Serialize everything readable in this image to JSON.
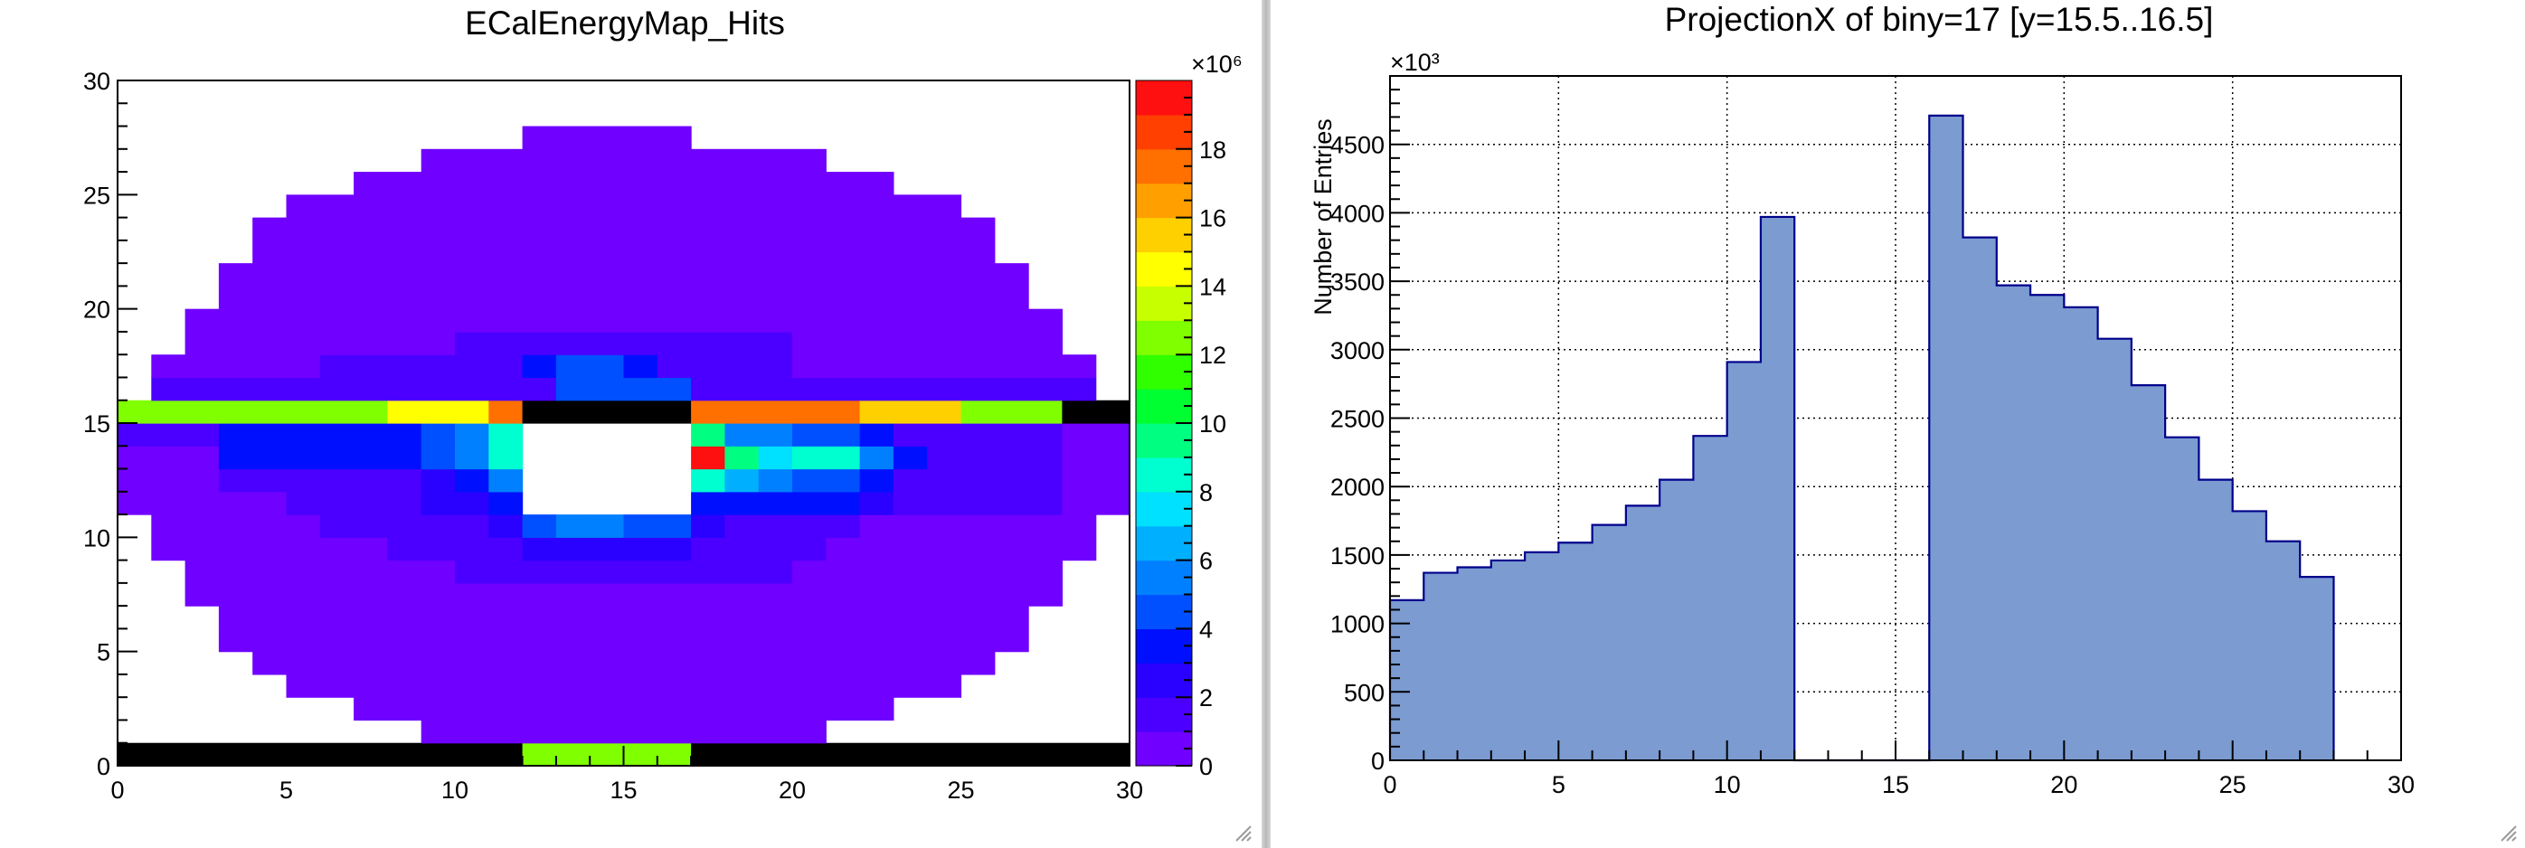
{
  "chart_data": [
    {
      "type": "heatmap",
      "title": "ECalEnergyMap_Hits",
      "xlabel": "",
      "ylabel": "",
      "xlim": [
        0,
        30
      ],
      "ylim": [
        0,
        30
      ],
      "x_ticks": [
        "0",
        "5",
        "10",
        "15",
        "20",
        "25",
        "30"
      ],
      "y_ticks": [
        "0",
        "5",
        "10",
        "15",
        "20",
        "25",
        "30"
      ],
      "colorbar": {
        "range": [
          0,
          20000000
        ],
        "exponent_label": "×10⁶",
        "ticks": [
          "0",
          "2",
          "4",
          "6",
          "8",
          "10",
          "12",
          "14",
          "16",
          "18"
        ],
        "palette": [
          "#7000ff",
          "#4b00ff",
          "#2a00ff",
          "#0010ff",
          "#0050ff",
          "#0080ff",
          "#00b0ff",
          "#00e0ff",
          "#00ffd0",
          "#00ff80",
          "#00ff30",
          "#30ff00",
          "#80ff00",
          "#c8ff00",
          "#ffff00",
          "#ffd000",
          "#ffa000",
          "#ff7000",
          "#ff4000",
          "#ff1010"
        ]
      },
      "cells_note_values_in_millions": true,
      "row_spans": [
        {
          "y": 0,
          "cells": [
            [
              0,
              12,
              0
            ],
            [
              12,
              17,
              12.5
            ],
            [
              17,
              30,
              0
            ]
          ]
        },
        {
          "y": 1,
          "cells": [
            [
              9,
              21,
              0.6
            ]
          ]
        },
        {
          "y": 2,
          "cells": [
            [
              7,
              23,
              0.6
            ]
          ]
        },
        {
          "y": 3,
          "cells": [
            [
              5,
              25,
              0.6
            ]
          ]
        },
        {
          "y": 4,
          "cells": [
            [
              4,
              26,
              0.6
            ]
          ]
        },
        {
          "y": 5,
          "cells": [
            [
              3,
              27,
              0.6
            ]
          ]
        },
        {
          "y": 6,
          "cells": [
            [
              3,
              27,
              0.6
            ]
          ]
        },
        {
          "y": 7,
          "cells": [
            [
              2,
              28,
              0.6
            ]
          ]
        },
        {
          "y": 8,
          "cells": [
            [
              2,
              10,
              0.6
            ],
            [
              10,
              20,
              1.4
            ],
            [
              20,
              28,
              0.6
            ]
          ]
        },
        {
          "y": 9,
          "cells": [
            [
              1,
              8,
              0.6
            ],
            [
              8,
              12,
              1.4
            ],
            [
              12,
              17,
              2.4
            ],
            [
              17,
              21,
              1.4
            ],
            [
              21,
              29,
              0.6
            ]
          ]
        },
        {
          "y": 10,
          "cells": [
            [
              1,
              6,
              0.6
            ],
            [
              6,
              11,
              1.4
            ],
            [
              11,
              12,
              2.4
            ],
            [
              12,
              13,
              4.0
            ],
            [
              13,
              14,
              5.0
            ],
            [
              14,
              15,
              5.5
            ],
            [
              15,
              17,
              4.0
            ],
            [
              17,
              18,
              2.4
            ],
            [
              18,
              22,
              1.4
            ],
            [
              22,
              29,
              0.6
            ]
          ]
        },
        {
          "y": 11,
          "cells": [
            [
              0,
              5,
              0.6
            ],
            [
              5,
              9,
              1.4
            ],
            [
              9,
              11,
              2.4
            ],
            [
              11,
              12,
              3.5
            ],
            [
              17,
              18,
              3.5
            ],
            [
              18,
              22,
              3.0
            ],
            [
              22,
              23,
              2.4
            ],
            [
              23,
              24,
              1.4
            ],
            [
              24,
              28,
              1.4
            ],
            [
              28,
              30,
              0.6
            ]
          ]
        },
        {
          "y": 12,
          "cells": [
            [
              0,
              3,
              0.6
            ],
            [
              3,
              9,
              1.4
            ],
            [
              9,
              10,
              2.4
            ],
            [
              10,
              11,
              3.5
            ],
            [
              11,
              12,
              5.0
            ],
            [
              17,
              18,
              8.0
            ],
            [
              18,
              19,
              6.0
            ],
            [
              19,
              20,
              5.0
            ],
            [
              20,
              22,
              4.0
            ],
            [
              22,
              23,
              3.0
            ],
            [
              23,
              24,
              1.4
            ],
            [
              24,
              28,
              1.4
            ],
            [
              28,
              30,
              0.6
            ]
          ]
        },
        {
          "y": 13,
          "cells": [
            [
              0,
              3,
              0.8
            ],
            [
              3,
              8,
              3.2
            ],
            [
              8,
              9,
              3.6
            ],
            [
              9,
              10,
              4.0
            ],
            [
              10,
              11,
              5.0
            ],
            [
              11,
              12,
              8.5
            ],
            [
              17,
              18,
              19.5
            ],
            [
              18,
              19,
              9.5
            ],
            [
              19,
              20,
              7.0
            ],
            [
              20,
              22,
              8.0
            ],
            [
              22,
              23,
              5.0
            ],
            [
              23,
              24,
              3.2
            ],
            [
              24,
              28,
              1.4
            ],
            [
              28,
              30,
              0.6
            ]
          ]
        },
        {
          "y": 14,
          "cells": [
            [
              0,
              3,
              1.4
            ],
            [
              3,
              8,
              3.0
            ],
            [
              8,
              9,
              3.6
            ],
            [
              9,
              10,
              4.0
            ],
            [
              10,
              11,
              5.0
            ],
            [
              11,
              12,
              8.5
            ],
            [
              17,
              18,
              9.0
            ],
            [
              18,
              20,
              5.5
            ],
            [
              20,
              22,
              4.0
            ],
            [
              22,
              23,
              3.2
            ],
            [
              23,
              24,
              1.4
            ],
            [
              24,
              28,
              1.4
            ],
            [
              28,
              30,
              0.6
            ]
          ]
        },
        {
          "y": 15,
          "cells": [
            [
              0,
              8,
              12.5
            ],
            [
              8,
              11,
              14.8
            ],
            [
              11,
              12,
              17.5
            ],
            [
              12,
              17,
              0
            ],
            [
              17,
              18,
              17.5
            ],
            [
              18,
              22,
              17.0
            ],
            [
              22,
              25,
              15.5
            ],
            [
              25,
              28,
              12.5
            ],
            [
              28,
              30,
              0
            ]
          ]
        },
        {
          "y": 16,
          "cells": [
            [
              1,
              12,
              1.4
            ],
            [
              12,
              13,
              1.8
            ],
            [
              13,
              17,
              4.0
            ],
            [
              17,
              18,
              1.8
            ],
            [
              18,
              29,
              1.4
            ]
          ]
        },
        {
          "y": 17,
          "cells": [
            [
              1,
              6,
              0.6
            ],
            [
              6,
              8,
              1.4
            ],
            [
              8,
              12,
              1.4
            ],
            [
              12,
              13,
              3.0
            ],
            [
              13,
              15,
              4.0
            ],
            [
              15,
              16,
              3.0
            ],
            [
              16,
              20,
              1.4
            ],
            [
              20,
              29,
              0.6
            ]
          ]
        },
        {
          "y": 18,
          "cells": [
            [
              2,
              10,
              0.6
            ],
            [
              10,
              20,
              1.4
            ],
            [
              20,
              28,
              0.6
            ]
          ]
        },
        {
          "y": 19,
          "cells": [
            [
              2,
              28,
              0.6
            ]
          ]
        },
        {
          "y": 20,
          "cells": [
            [
              3,
              27,
              0.6
            ]
          ]
        },
        {
          "y": 21,
          "cells": [
            [
              3,
              27,
              0.6
            ]
          ]
        },
        {
          "y": 22,
          "cells": [
            [
              4,
              26,
              0.6
            ]
          ]
        },
        {
          "y": 23,
          "cells": [
            [
              4,
              26,
              0.6
            ]
          ]
        },
        {
          "y": 24,
          "cells": [
            [
              5,
              25,
              0.6
            ]
          ]
        },
        {
          "y": 25,
          "cells": [
            [
              7,
              23,
              0.6
            ]
          ]
        },
        {
          "y": 26,
          "cells": [
            [
              9,
              21,
              0.6
            ]
          ]
        },
        {
          "y": 27,
          "cells": [
            [
              12,
              17,
              0.6
            ]
          ]
        }
      ]
    },
    {
      "type": "bar",
      "title": "ProjectionX of biny=17 [y=15.5..16.5]",
      "xlabel": "",
      "ylabel": "Number of Entries",
      "y_exponent_label": "×10³",
      "xlim": [
        0,
        30
      ],
      "ylim": [
        0,
        5000
      ],
      "x_ticks": [
        "0",
        "5",
        "10",
        "15",
        "20",
        "25",
        "30"
      ],
      "y_ticks": [
        "0",
        "500",
        "1000",
        "1500",
        "2000",
        "2500",
        "3000",
        "3500",
        "4000",
        "4500"
      ],
      "grid": true,
      "fill_color": "#7b9bd1",
      "line_color": "#00008b",
      "bin_edges_start": 0,
      "bin_width": 1,
      "values_thousands": [
        1170,
        1370,
        1410,
        1460,
        1520,
        1590,
        1720,
        1860,
        2050,
        2370,
        2910,
        3970,
        0,
        0,
        0,
        0,
        4710,
        3820,
        3470,
        3400,
        3310,
        3080,
        2740,
        2360,
        2050,
        1820,
        1600,
        1340
      ]
    }
  ]
}
